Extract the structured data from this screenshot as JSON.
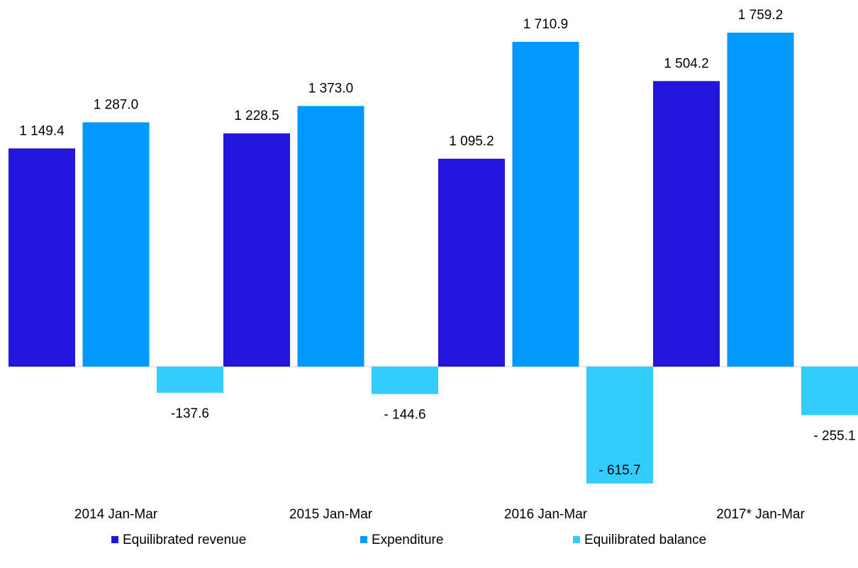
{
  "chart_data": {
    "type": "bar",
    "categories": [
      "2014 Jan-Mar",
      "2015 Jan-Mar",
      "2016 Jan-Mar",
      "2017* Jan-Mar"
    ],
    "series": [
      {
        "name": "Equilibrated revenue",
        "color": "#2415dc",
        "values": [
          1149.4,
          1228.5,
          1095.2,
          1504.2
        ],
        "value_labels": [
          "1 149.4",
          "1 228.5",
          "1 095.2",
          "1 504.2"
        ]
      },
      {
        "name": "Expenditure",
        "color": "#0099ff",
        "values": [
          1287.0,
          1373.0,
          1710.9,
          1759.2
        ],
        "value_labels": [
          "1 287.0",
          "1 373.0",
          "1 710.9",
          "1 759.2"
        ]
      },
      {
        "name": "Equilibrated balance",
        "color": "#33ccff",
        "values": [
          -137.6,
          -144.6,
          -615.7,
          -255.1
        ],
        "value_labels": [
          "-137.6",
          "- 144.6",
          "- 615.7",
          "- 255.1"
        ]
      }
    ],
    "legend": "bottom"
  }
}
